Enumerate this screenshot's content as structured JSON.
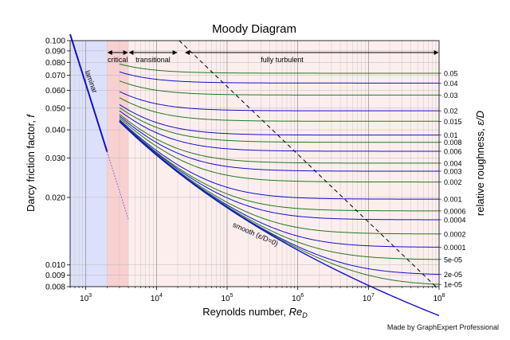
{
  "chart_data": {
    "type": "line",
    "title": "Moody Diagram",
    "xlabel": "Reynolds number, Re_D",
    "ylabel": "Darcy friction factor, f",
    "y2label": "relative roughness, ε/D",
    "xscale": "log",
    "yscale": "log",
    "xlim": [
      600,
      100000000
    ],
    "ylim": [
      0.008,
      0.1
    ],
    "x_ticks": [
      {
        "value": 1000,
        "base": "10",
        "exp": "3"
      },
      {
        "value": 10000,
        "base": "10",
        "exp": "4"
      },
      {
        "value": 100000,
        "base": "10",
        "exp": "5"
      },
      {
        "value": 1000000,
        "base": "10",
        "exp": "6"
      },
      {
        "value": 10000000,
        "base": "10",
        "exp": "7"
      },
      {
        "value": 100000000,
        "base": "10",
        "exp": "8"
      }
    ],
    "y_ticks": [
      {
        "value": 0.1,
        "label": "0.100"
      },
      {
        "value": 0.09,
        "label": "0.090"
      },
      {
        "value": 0.08,
        "label": "0.080"
      },
      {
        "value": 0.07,
        "label": "0.070"
      },
      {
        "value": 0.06,
        "label": "0.060"
      },
      {
        "value": 0.05,
        "label": "0.050"
      },
      {
        "value": 0.04,
        "label": "0.040"
      },
      {
        "value": 0.03,
        "label": "0.030"
      },
      {
        "value": 0.02,
        "label": "0.020"
      },
      {
        "value": 0.01,
        "label": "0.010"
      },
      {
        "value": 0.009,
        "label": "0.009"
      },
      {
        "value": 0.008,
        "label": "0.008"
      }
    ],
    "regions": [
      {
        "name": "laminar",
        "x_from": 600,
        "x_to": 2000,
        "color": "#dde0fb"
      },
      {
        "name": "critical",
        "x_from": 2000,
        "x_to": 4000,
        "color": "#f9d0d0"
      },
      {
        "name": "transitional",
        "x_from": 4000,
        "x_to": 100000000,
        "color": "#fdeeee"
      }
    ],
    "region_labels": {
      "laminar": "laminar",
      "critical": "critical",
      "transitional": "transitional",
      "fully_turbulent": "fully turbulent"
    },
    "region_spans": {
      "critical": [
        2000,
        4000
      ],
      "transitional": [
        4000,
        20000
      ],
      "fully_turbulent": [
        25000,
        100000000
      ]
    },
    "smooth_label": "smooth (ε/D=0)",
    "laminar_line": {
      "formula": "f = 64 / Re",
      "solid_range": [
        600,
        2000
      ],
      "dotted_range": [
        2000,
        4000
      ]
    },
    "turbulence_boundary": {
      "description": "dashed boundary of fully turbulent zone",
      "points": [
        [
          21000,
          0.1
        ],
        [
          90000000,
          0.008
        ]
      ]
    },
    "relative_roughness": [
      {
        "value": 0.05,
        "label": "0.05",
        "color": "#1f7a1f"
      },
      {
        "value": 0.04,
        "label": "0.04",
        "color": "#1010cc"
      },
      {
        "value": 0.03,
        "label": "0.03",
        "color": "#1f7a1f"
      },
      {
        "value": 0.02,
        "label": "0.02",
        "color": "#1010cc"
      },
      {
        "value": 0.015,
        "label": "0.015",
        "color": "#1f7a1f"
      },
      {
        "value": 0.01,
        "label": "0.01",
        "color": "#1010cc"
      },
      {
        "value": 0.008,
        "label": "0.008",
        "color": "#1f7a1f"
      },
      {
        "value": 0.006,
        "label": "0.006",
        "color": "#1010cc"
      },
      {
        "value": 0.004,
        "label": "0.004",
        "color": "#1f7a1f"
      },
      {
        "value": 0.003,
        "label": "0.003",
        "color": "#1010cc"
      },
      {
        "value": 0.002,
        "label": "0.002",
        "color": "#1f7a1f"
      },
      {
        "value": 0.001,
        "label": "0.001",
        "color": "#1010cc"
      },
      {
        "value": 0.0006,
        "label": "0.0006",
        "color": "#1f7a1f"
      },
      {
        "value": 0.0004,
        "label": "0.0004",
        "color": "#1010cc"
      },
      {
        "value": 0.0002,
        "label": "0.0002",
        "color": "#1f7a1f"
      },
      {
        "value": 0.0001,
        "label": "0.0001",
        "color": "#1010cc"
      },
      {
        "value": 5e-05,
        "label": "5e-05",
        "color": "#1f7a1f"
      },
      {
        "value": 2e-05,
        "label": "2e-05",
        "color": "#1010cc"
      },
      {
        "value": 1e-05,
        "label": "1e-05",
        "color": "#1f7a1f"
      }
    ],
    "smooth_curve": {
      "value": 0,
      "color": "#1010cc"
    },
    "curve_x_range": [
      3000,
      100000000
    ]
  },
  "credit": "Made by GraphExpert Professional"
}
